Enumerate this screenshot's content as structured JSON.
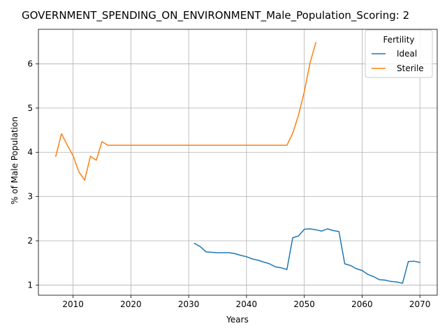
{
  "chart_data": {
    "type": "line",
    "title": "GOVERNMENT_SPENDING_ON_ENVIRONMENT_Male_Population_Scoring: 2",
    "xlabel": "Years",
    "ylabel": "% of Male Population",
    "xlim": [
      2004,
      2073
    ],
    "ylim": [
      0.77,
      6.78
    ],
    "xticks": [
      2010,
      2020,
      2030,
      2040,
      2050,
      2060,
      2070
    ],
    "yticks": [
      1,
      2,
      3,
      4,
      5,
      6
    ],
    "grid": true,
    "legend": {
      "title": "Fertility",
      "placement": "top-right"
    },
    "series": [
      {
        "name": "Ideal",
        "color": "#1f77b4",
        "x": [
          2031,
          2032,
          2033,
          2034,
          2035,
          2036,
          2037,
          2038,
          2039,
          2040,
          2041,
          2042,
          2043,
          2044,
          2045,
          2046,
          2047,
          2048,
          2049,
          2050,
          2051,
          2052,
          2053,
          2054,
          2055,
          2056,
          2057,
          2058,
          2059,
          2060,
          2061,
          2062,
          2063,
          2064,
          2065,
          2066,
          2067,
          2068,
          2069,
          2070
        ],
        "y": [
          1.94,
          1.87,
          1.75,
          1.74,
          1.73,
          1.73,
          1.73,
          1.71,
          1.67,
          1.64,
          1.59,
          1.56,
          1.52,
          1.48,
          1.41,
          1.39,
          1.35,
          2.07,
          2.11,
          2.26,
          2.27,
          2.25,
          2.22,
          2.27,
          2.23,
          2.21,
          1.48,
          1.44,
          1.37,
          1.33,
          1.24,
          1.19,
          1.12,
          1.11,
          1.08,
          1.07,
          1.04,
          1.53,
          1.54,
          1.51
        ]
      },
      {
        "name": "Sterile",
        "color": "#ff7f0e",
        "x": [
          2007,
          2008,
          2009,
          2010,
          2011,
          2012,
          2013,
          2014,
          2015,
          2016,
          2017,
          2018,
          2019,
          2020,
          2021,
          2022,
          2023,
          2024,
          2025,
          2026,
          2027,
          2028,
          2029,
          2030,
          2031,
          2032,
          2033,
          2034,
          2035,
          2036,
          2037,
          2038,
          2039,
          2040,
          2041,
          2042,
          2043,
          2044,
          2045,
          2046,
          2047,
          2048,
          2049,
          2050,
          2051,
          2052
        ],
        "y": [
          3.91,
          4.42,
          4.16,
          3.92,
          3.56,
          3.37,
          3.91,
          3.82,
          4.24,
          4.16,
          4.16,
          4.16,
          4.16,
          4.16,
          4.16,
          4.16,
          4.16,
          4.16,
          4.16,
          4.16,
          4.16,
          4.16,
          4.16,
          4.16,
          4.16,
          4.16,
          4.16,
          4.16,
          4.16,
          4.16,
          4.16,
          4.16,
          4.16,
          4.16,
          4.16,
          4.16,
          4.16,
          4.16,
          4.16,
          4.16,
          4.16,
          4.43,
          4.84,
          5.37,
          6.02,
          6.48
        ]
      }
    ]
  }
}
